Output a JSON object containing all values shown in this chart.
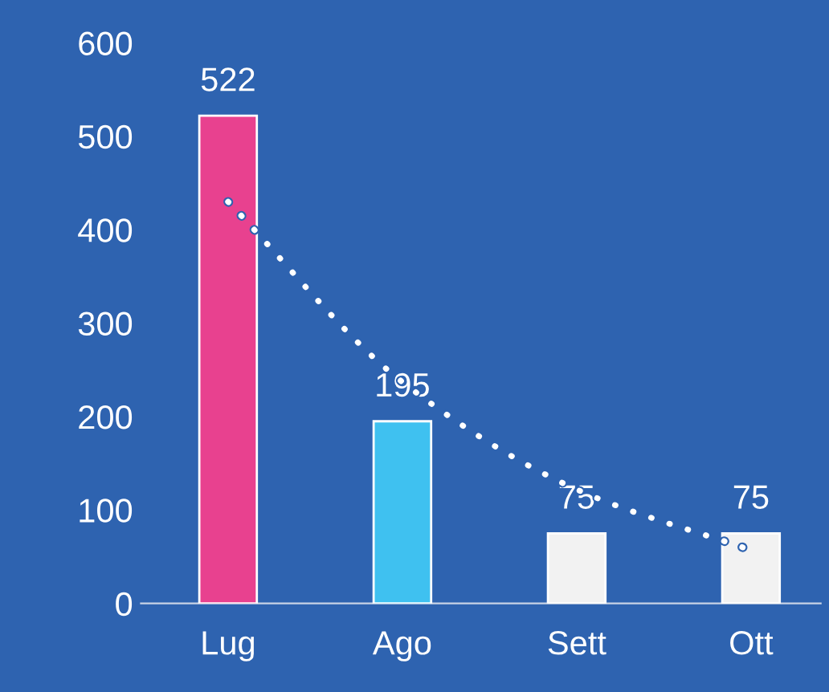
{
  "chart_data": {
    "type": "bar",
    "categories": [
      "Lug",
      "Ago",
      "Sett",
      "Ott"
    ],
    "series": [
      {
        "values": [
          522,
          195,
          75,
          75
        ],
        "value_labels": [
          "522",
          "195",
          "75",
          "75"
        ],
        "colors": [
          "#e8418f",
          "#3fc1f0",
          "#f2f2f2",
          "#f2f2f2"
        ]
      },
      {
        "type": "line",
        "values": [
          430,
          237,
          122,
          57
        ],
        "color": "#ffffff",
        "line_style": "dotted",
        "marker": "none"
      }
    ],
    "ylim": [
      0,
      600
    ],
    "yticks": [
      0,
      100,
      200,
      300,
      400,
      500,
      600
    ],
    "grid": false,
    "legend": false
  }
}
